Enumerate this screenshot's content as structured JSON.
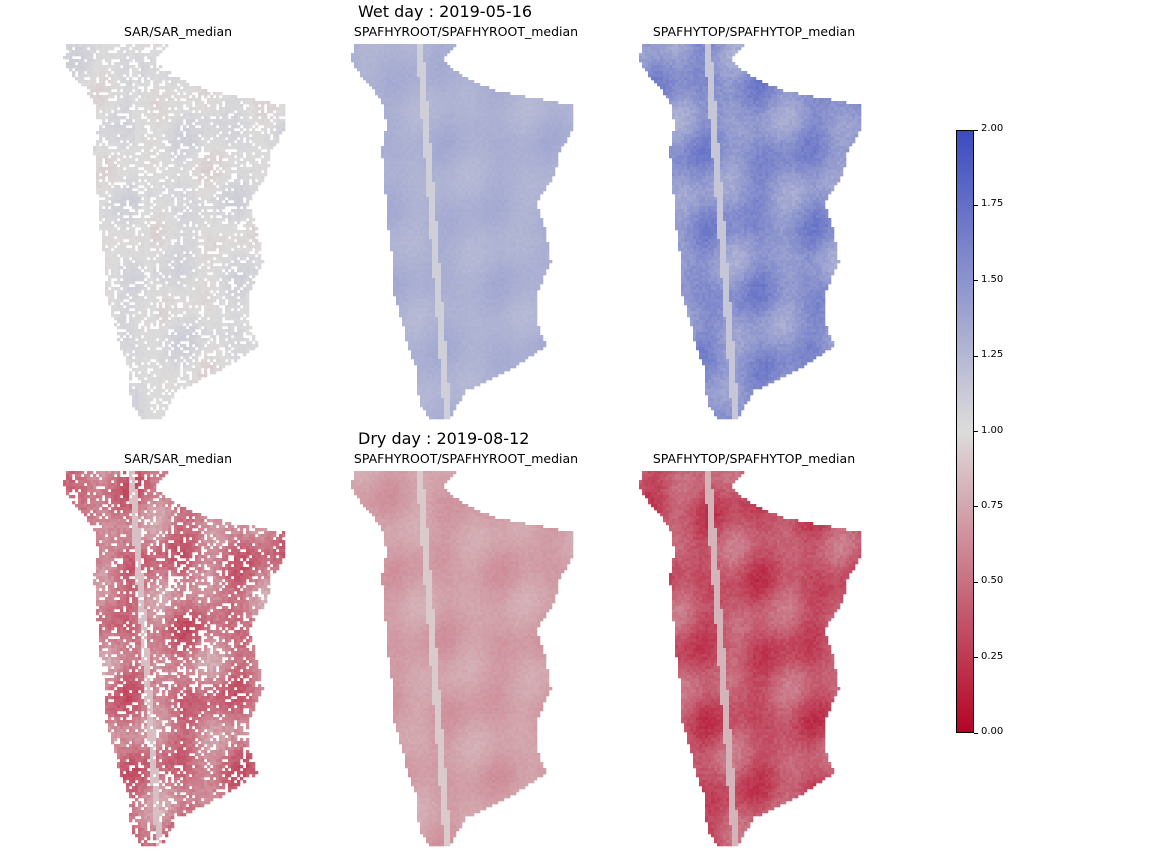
{
  "figure": {
    "row_titles": [
      "Wet day : 2019-05-16",
      "Dry day : 2019-08-12"
    ],
    "panel_titles": [
      "SAR/SAR_median",
      "SPAFHYROOT/SPAFHYROOT_median",
      "SPAFHYTOP/SPAFHYTOP_median"
    ]
  },
  "colors": {
    "colormap": "coolwarm_r",
    "low": "#b40426",
    "mid": "#dddcdb",
    "high": "#3b4cc0"
  },
  "chart_data": {
    "type": "heatmap",
    "title": "",
    "colorbar": {
      "range": [
        0.0,
        2.0
      ],
      "ticks": [
        "0.00",
        "0.25",
        "0.50",
        "0.75",
        "1.00",
        "1.25",
        "1.50",
        "1.75",
        "2.00"
      ]
    },
    "panels": [
      {
        "row": "Wet day : 2019-05-16",
        "title": "SAR/SAR_median",
        "typical_ratio": 1.02,
        "spread": 0.04,
        "missing_fraction": 0.2
      },
      {
        "row": "Wet day : 2019-05-16",
        "title": "SPAFHYROOT/SPAFHYROOT_median",
        "typical_ratio": 1.3,
        "spread": 0.03,
        "missing_fraction": 0.0
      },
      {
        "row": "Wet day : 2019-05-16",
        "title": "SPAFHYTOP/SPAFHYTOP_median",
        "typical_ratio": 1.5,
        "spread": 0.1,
        "missing_fraction": 0.0
      },
      {
        "row": "Dry day : 2019-08-12",
        "title": "SAR/SAR_median",
        "typical_ratio": 0.55,
        "spread": 0.12,
        "missing_fraction": 0.2
      },
      {
        "row": "Dry day : 2019-08-12",
        "title": "SPAFHYROOT/SPAFHYROOT_median",
        "typical_ratio": 0.72,
        "spread": 0.04,
        "missing_fraction": 0.0
      },
      {
        "row": "Dry day : 2019-08-12",
        "title": "SPAFHYTOP/SPAFHYTOP_median",
        "typical_ratio": 0.38,
        "spread": 0.1,
        "missing_fraction": 0.0
      }
    ]
  }
}
